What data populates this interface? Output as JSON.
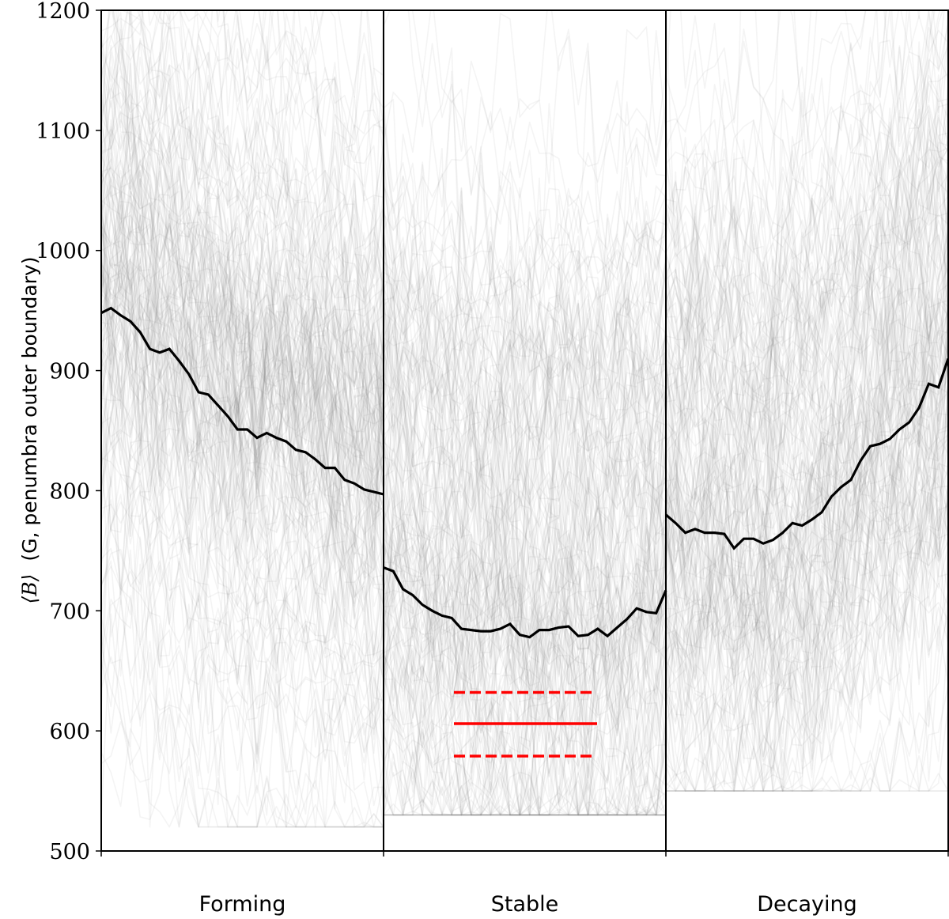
{
  "chart_data": {
    "type": "line",
    "title": "",
    "xlabel": "",
    "ylabel": "⟨B⟩ (G, penumbra outer boundary)",
    "ylabel_parts": {
      "symbol": "⟨B⟩",
      "text": "(G, penumbra outer boundary)"
    },
    "ylim": [
      500,
      1200
    ],
    "yticks": [
      500,
      600,
      700,
      800,
      900,
      1000,
      1100,
      1200
    ],
    "grid": false,
    "legend": null,
    "categories": [
      "Forming",
      "Stable",
      "Decaying"
    ],
    "panels": [
      {
        "name": "Forming",
        "mean_series": [
          948,
          952,
          946,
          941,
          932,
          918,
          915,
          918,
          908,
          897,
          882,
          880,
          871,
          862,
          851,
          851,
          844,
          848,
          844,
          841,
          834,
          832,
          826,
          819,
          819,
          809,
          806,
          801,
          799,
          797
        ],
        "individual_traces_range": [
          530,
          1200
        ]
      },
      {
        "name": "Stable",
        "mean_series": [
          736,
          733,
          718,
          713,
          705,
          700,
          696,
          694,
          685,
          684,
          683,
          683,
          685,
          689,
          680,
          678,
          684,
          684,
          686,
          687,
          679,
          680,
          685,
          679,
          686,
          693,
          702,
          699,
          698,
          717
        ],
        "individual_traces_range": [
          540,
          1200
        ],
        "reference_lines": {
          "color": "#ff0000",
          "solid": 606,
          "dashed_upper": 632,
          "dashed_lower": 579
        }
      },
      {
        "name": "Decaying",
        "mean_series": [
          780,
          773,
          765,
          768,
          765,
          765,
          764,
          752,
          760,
          760,
          756,
          759,
          765,
          773,
          771,
          776,
          782,
          795,
          803,
          809,
          825,
          837,
          839,
          843,
          851,
          857,
          869,
          889,
          886,
          910
        ],
        "individual_traces_range": [
          560,
          1200
        ]
      }
    ],
    "colors": {
      "mean_line": "#000000",
      "traces": "#808080",
      "reference": "#ff0000",
      "axes": "#000000"
    }
  }
}
